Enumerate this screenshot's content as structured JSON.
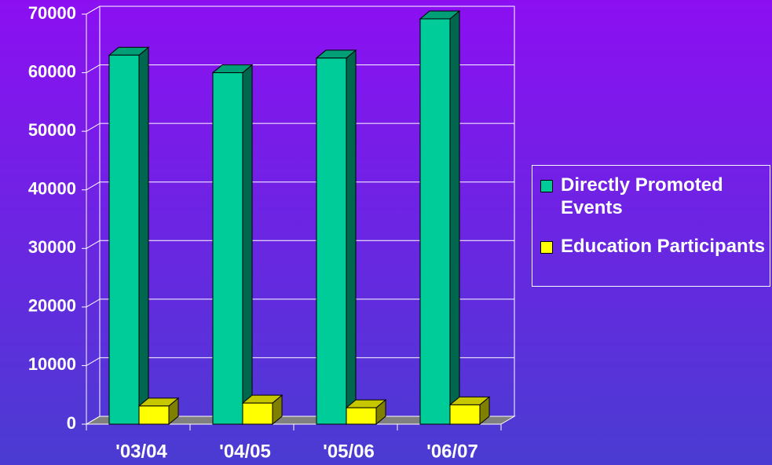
{
  "chart_data": {
    "type": "bar3d",
    "categories": [
      "'03/04",
      "'04/05",
      "'05/06",
      "'06/07"
    ],
    "series": [
      {
        "name": "Directly Promoted Events",
        "color": "#00cc99",
        "values": [
          63000,
          60000,
          62500,
          69200
        ]
      },
      {
        "name": "Education Participants",
        "color": "#ffff00",
        "values": [
          3100,
          3600,
          2800,
          3300
        ]
      }
    ],
    "ylim": [
      0,
      70000
    ],
    "yticks": [
      0,
      10000,
      20000,
      30000,
      40000,
      50000,
      60000,
      70000
    ],
    "grid": true,
    "legend": "right"
  }
}
